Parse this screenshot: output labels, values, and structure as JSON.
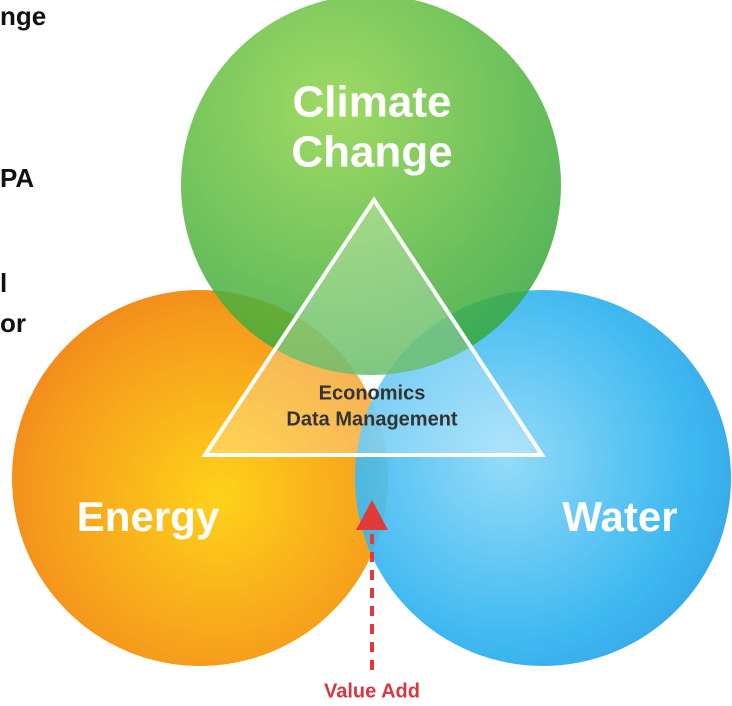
{
  "side_text": [
    "nge",
    "PA",
    "l",
    "or"
  ],
  "nodes": [
    {
      "label_lines": [
        "Climate",
        "Change"
      ]
    },
    {
      "label_lines": [
        "Energy"
      ]
    },
    {
      "label_lines": [
        "Water"
      ]
    }
  ],
  "center": {
    "label_lines": [
      "Economics",
      "Data Management"
    ]
  },
  "arrow": {
    "label": "Value Add"
  }
}
